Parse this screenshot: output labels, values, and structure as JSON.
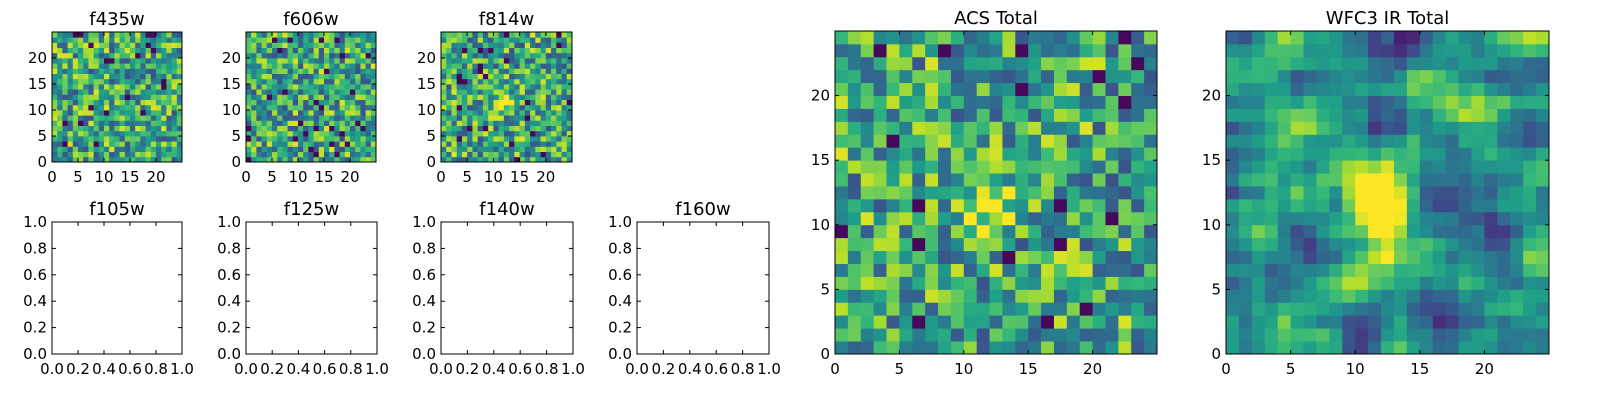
{
  "chart_data": [
    {
      "type": "heatmap",
      "title": "f435w",
      "xlim": [
        0,
        25
      ],
      "ylim": [
        0,
        25
      ],
      "xticks": [
        0,
        5,
        10,
        15,
        20
      ],
      "yticks": [
        0,
        5,
        10,
        15,
        20
      ],
      "colormap": "viridis",
      "source_peak": false,
      "seed": 11
    },
    {
      "type": "heatmap",
      "title": "f606w",
      "xlim": [
        0,
        25
      ],
      "ylim": [
        0,
        25
      ],
      "xticks": [
        0,
        5,
        10,
        15,
        20
      ],
      "yticks": [
        0,
        5,
        10,
        15,
        20
      ],
      "colormap": "viridis",
      "source_peak": false,
      "seed": 23
    },
    {
      "type": "heatmap",
      "title": "f814w",
      "xlim": [
        0,
        25
      ],
      "ylim": [
        0,
        25
      ],
      "xticks": [
        0,
        5,
        10,
        15,
        20
      ],
      "yticks": [
        0,
        5,
        10,
        15,
        20
      ],
      "colormap": "viridis",
      "source_peak": true,
      "seed": 37
    },
    {
      "type": "empty",
      "title": "f105w",
      "xlim": [
        0.0,
        1.0
      ],
      "ylim": [
        0.0,
        1.0
      ],
      "xticks": [
        "0.0",
        "0.2",
        "0.4",
        "0.6",
        "0.8",
        "1.0"
      ],
      "yticks": [
        "0.0",
        "0.2",
        "0.4",
        "0.6",
        "0.8",
        "1.0"
      ]
    },
    {
      "type": "empty",
      "title": "f125w",
      "xlim": [
        0.0,
        1.0
      ],
      "ylim": [
        0.0,
        1.0
      ],
      "xticks": [
        "0.0",
        "0.2",
        "0.4",
        "0.6",
        "0.8",
        "1.0"
      ],
      "yticks": [
        "0.0",
        "0.2",
        "0.4",
        "0.6",
        "0.8",
        "1.0"
      ]
    },
    {
      "type": "empty",
      "title": "f140w",
      "xlim": [
        0.0,
        1.0
      ],
      "ylim": [
        0.0,
        1.0
      ],
      "xticks": [
        "0.0",
        "0.2",
        "0.4",
        "0.6",
        "0.8",
        "1.0"
      ],
      "yticks": [
        "0.0",
        "0.2",
        "0.4",
        "0.6",
        "0.8",
        "1.0"
      ]
    },
    {
      "type": "empty",
      "title": "f160w",
      "xlim": [
        0.0,
        1.0
      ],
      "ylim": [
        0.0,
        1.0
      ],
      "xticks": [
        "0.0",
        "0.2",
        "0.4",
        "0.6",
        "0.8",
        "1.0"
      ],
      "yticks": [
        "0.0",
        "0.2",
        "0.4",
        "0.6",
        "0.8",
        "1.0"
      ]
    },
    {
      "type": "heatmap",
      "title": "ACS Total",
      "xlim": [
        0,
        25
      ],
      "ylim": [
        0,
        25
      ],
      "xticks": [
        0,
        5,
        10,
        15,
        20
      ],
      "yticks": [
        0,
        5,
        10,
        15,
        20
      ],
      "colormap": "viridis",
      "source_peak": true,
      "seed": 53
    },
    {
      "type": "heatmap",
      "title": "WFC3 IR Total",
      "xlim": [
        0,
        25
      ],
      "ylim": [
        0,
        25
      ],
      "xticks": [
        0,
        5,
        10,
        15,
        20
      ],
      "yticks": [
        0,
        5,
        10,
        15,
        20
      ],
      "colormap": "viridis",
      "source_peak": true,
      "smooth": true,
      "seed": 71
    }
  ]
}
